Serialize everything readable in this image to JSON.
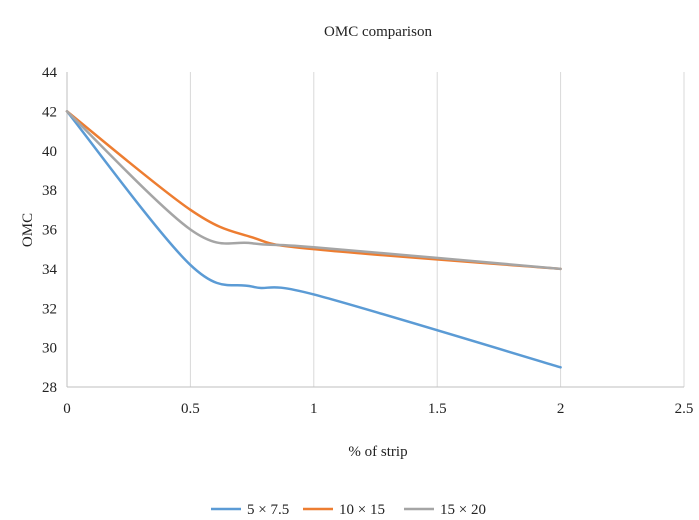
{
  "chart_data": {
    "type": "line",
    "title": "OMC comparison",
    "xlabel": "% of strip",
    "ylabel": "OMC",
    "xlim": [
      0,
      2.5
    ],
    "ylim": [
      28,
      44
    ],
    "x_ticks": [
      "0",
      "0.5",
      "1",
      "1.5",
      "2",
      "2.5"
    ],
    "y_ticks": [
      "28",
      "30",
      "32",
      "34",
      "36",
      "38",
      "40",
      "42",
      "44"
    ],
    "grid": "vertical",
    "legend_position": "bottom",
    "smooth": true,
    "x": [
      0,
      0.5,
      0.75,
      1,
      2
    ],
    "series": [
      {
        "name": "5 × 7.5",
        "color": "#5b9bd5",
        "values": [
          42,
          34.2,
          33.1,
          32.7,
          29
        ]
      },
      {
        "name": "10 × 15",
        "color": "#ed7d31",
        "values": [
          42,
          37,
          35.6,
          35,
          34
        ]
      },
      {
        "name": "15 × 20",
        "color": "#a5a5a5",
        "values": [
          42,
          36,
          35.3,
          35.1,
          34
        ]
      }
    ]
  }
}
